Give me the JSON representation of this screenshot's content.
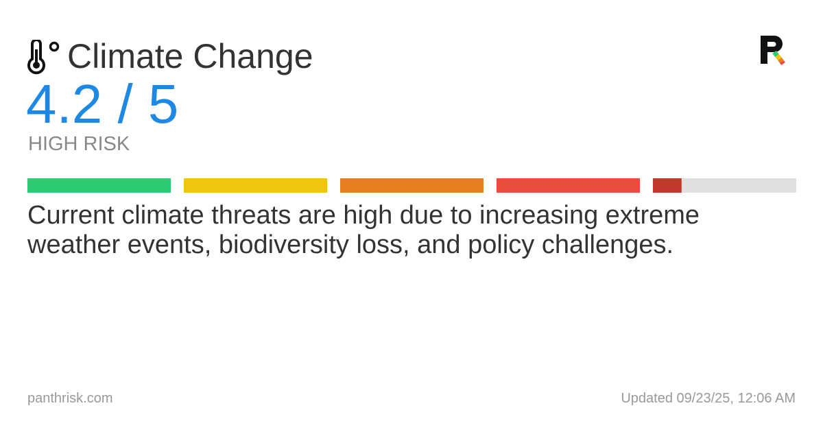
{
  "title": "Climate Change",
  "score": {
    "value": 4.2,
    "label": "4.2 / 5"
  },
  "max": 5,
  "risk_level": "HIGH RISK",
  "segment_colors": [
    "#2ecc71",
    "#f1c40f",
    "#e67e22",
    "#e74c3c",
    "#c0392b"
  ],
  "empty_color": "#e0e0e0",
  "description": "Current climate threats are high due to increasing extreme weather events, biodiversity loss, and policy challenges.",
  "footer": {
    "site": "panthrisk.com",
    "updated": "Updated 09/23/25, 12:06 AM"
  }
}
